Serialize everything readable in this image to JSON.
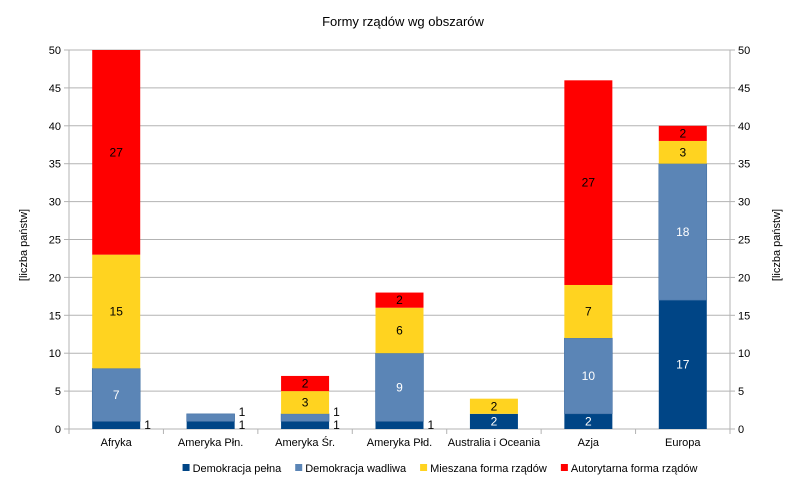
{
  "chart_data": {
    "type": "bar",
    "stacked": true,
    "title": "Formy rządów wg obszarów",
    "ylabel": "[liczba państw]",
    "ylabel_right": "[liczba państw]",
    "xlabel": "",
    "ylim": [
      0,
      50
    ],
    "yticks": [
      0,
      5,
      10,
      15,
      20,
      25,
      30,
      35,
      40,
      45,
      50
    ],
    "grid": true,
    "legend_position": "bottom",
    "categories": [
      "Afryka",
      "Ameryka Płn.",
      "Ameryka Śr.",
      "Ameryka Płd.",
      "Australia i Oceania",
      "Azja",
      "Europa"
    ],
    "series": [
      {
        "name": "Demokracja pełna",
        "color": "#004586",
        "label_color": "#ffffff",
        "values": [
          1,
          1,
          1,
          1,
          2,
          2,
          17
        ]
      },
      {
        "name": "Demokracja wadliwa",
        "color": "#5b85b6",
        "label_color": "#ffffff",
        "values": [
          7,
          1,
          1,
          9,
          0,
          10,
          18
        ]
      },
      {
        "name": "Mieszana forma rządów",
        "color": "#ffd320",
        "label_color": "#000000",
        "values": [
          15,
          0,
          3,
          6,
          2,
          7,
          3
        ]
      },
      {
        "name": "Autorytarna forma rządów",
        "color": "#ff0000",
        "label_color": "#000000",
        "values": [
          27,
          0,
          2,
          2,
          0,
          27,
          2
        ]
      }
    ]
  }
}
